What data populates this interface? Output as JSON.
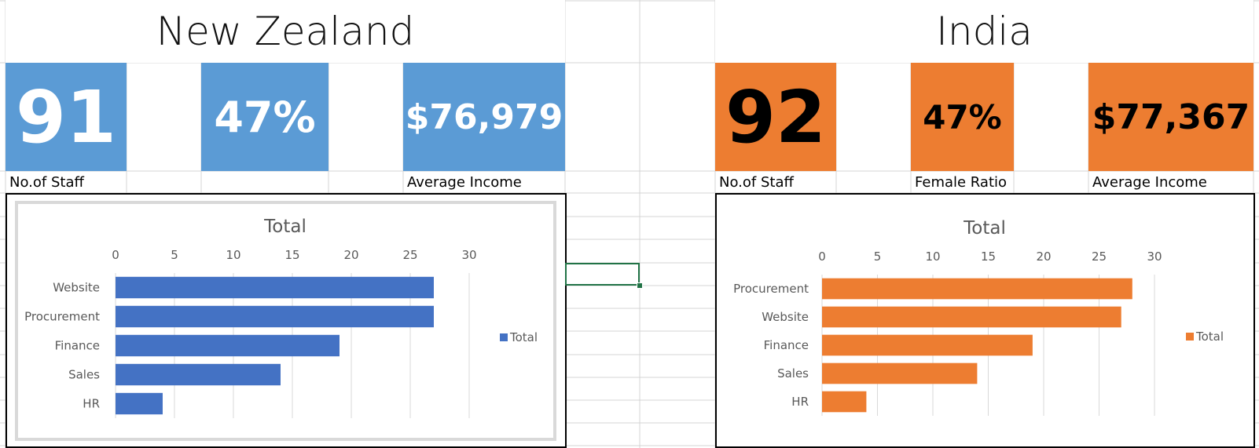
{
  "dashboards": [
    {
      "country": "New Zealand",
      "theme": "blue",
      "kpis": {
        "staff": "91",
        "female_ratio": "47%",
        "average_income": "$76,979"
      },
      "labels": {
        "staff": "No.of Staff",
        "female_ratio": "",
        "average_income": "Average Income"
      }
    },
    {
      "country": "India",
      "theme": "orange",
      "kpis": {
        "staff": "92",
        "female_ratio": "47%",
        "average_income": "$77,367"
      },
      "labels": {
        "staff": "No.of Staff",
        "female_ratio": "Female Ratio",
        "average_income": "Average Income"
      }
    }
  ],
  "colors": {
    "blue": "#5b9bd5",
    "bar_blue": "#4472c4",
    "orange": "#ed7d31",
    "selection": "#217346",
    "gridline": "#d9d9d9"
  },
  "chart_data": [
    {
      "type": "bar",
      "orientation": "horizontal",
      "title": "Total",
      "categories": [
        "Website",
        "Procurement",
        "Finance",
        "Sales",
        "HR"
      ],
      "series": [
        {
          "name": "Total",
          "values": [
            27,
            27,
            19,
            14,
            4
          ],
          "color": "#4472c4"
        }
      ],
      "xlim": [
        0,
        30
      ],
      "ticks": [
        0,
        5,
        10,
        15,
        20,
        25,
        30
      ],
      "tick_labels": [
        "0",
        "5",
        "10",
        "15",
        "20",
        "25",
        "30"
      ],
      "axis_position": "top",
      "grid": true,
      "legend": "right"
    },
    {
      "type": "bar",
      "orientation": "horizontal",
      "title": "Total",
      "categories": [
        "Procurement",
        "Website",
        "Finance",
        "Sales",
        "HR"
      ],
      "series": [
        {
          "name": "Total",
          "values": [
            28,
            27,
            19,
            14,
            4
          ],
          "color": "#ed7d31"
        }
      ],
      "xlim": [
        0,
        30
      ],
      "ticks": [
        0,
        5,
        10,
        15,
        20,
        25,
        30
      ],
      "tick_labels": [
        "0",
        "5",
        "10",
        "15",
        "20",
        "25",
        "30"
      ],
      "axis_position": "top",
      "grid": true,
      "legend": "right"
    }
  ]
}
